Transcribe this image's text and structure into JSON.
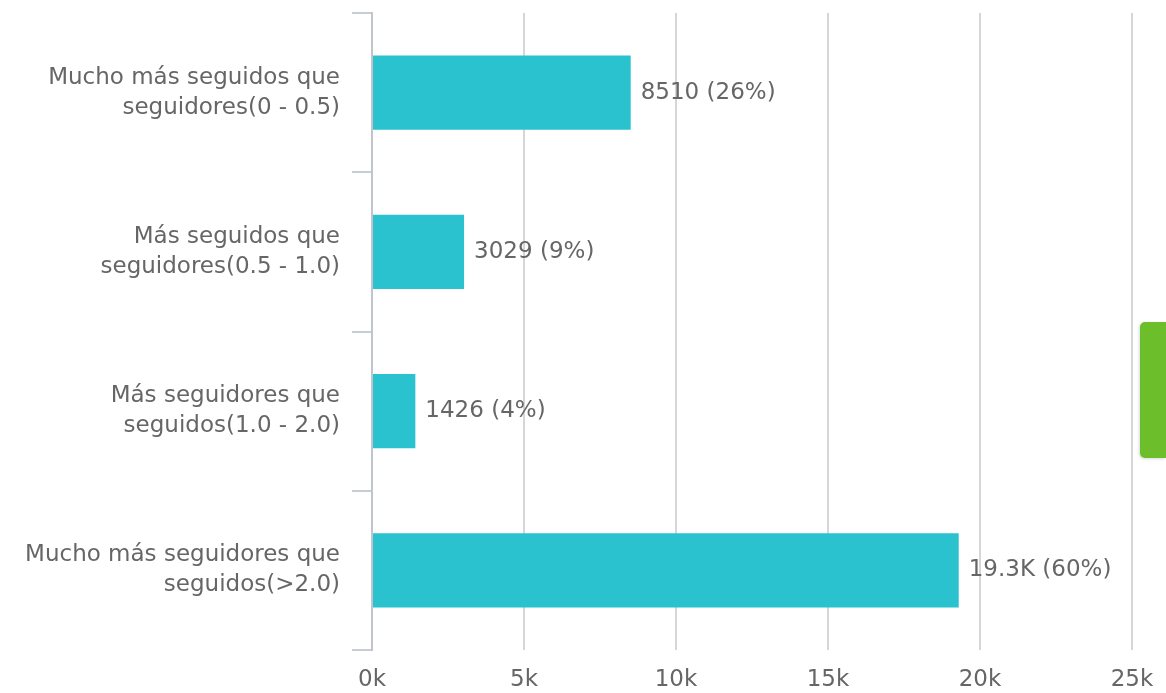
{
  "chart_data": {
    "type": "bar",
    "orientation": "horizontal",
    "categories": [
      "Mucho más seguidos que seguidores(0 - 0.5)",
      "Más seguidos que seguidores(0.5 - 1.0)",
      "Más seguidores que seguidos(1.0 - 2.0)",
      "Mucho más seguidores que seguidos(>2.0)"
    ],
    "values": [
      8510,
      3029,
      1426,
      19300
    ],
    "color": "#2bc2cf",
    "value_labels": [
      "8510 (26%)",
      "3029 (9%)",
      "1426 (4%)",
      "19.3K (60%)"
    ],
    "xlim": [
      0,
      25000
    ],
    "xticks": [
      {
        "value": 0,
        "label": "0k"
      },
      {
        "value": 5000,
        "label": "5k"
      },
      {
        "value": 10000,
        "label": "10k"
      },
      {
        "value": 15000,
        "label": "15k"
      },
      {
        "value": 20000,
        "label": "20k"
      },
      {
        "value": 25000,
        "label": "25k"
      }
    ],
    "grid": "x"
  }
}
